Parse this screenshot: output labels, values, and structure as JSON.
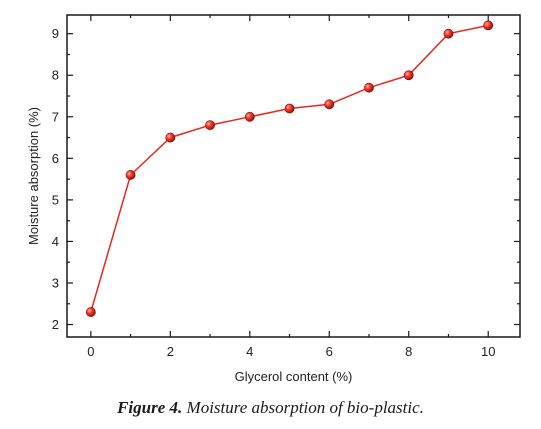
{
  "chart_data": {
    "type": "line",
    "x": [
      0,
      1,
      2,
      3,
      4,
      5,
      6,
      7,
      8,
      9,
      10
    ],
    "series": [
      {
        "values": [
          2.3,
          5.6,
          6.5,
          6.8,
          7.0,
          7.2,
          7.3,
          7.7,
          8.0,
          9.0,
          9.2
        ]
      }
    ],
    "xlabel": "Glycerol content (%)",
    "ylabel": "Moisture absorption (%)",
    "xlim": [
      -0.6,
      10.8
    ],
    "ylim": [
      1.7,
      9.45
    ],
    "xticks": [
      0,
      2,
      4,
      6,
      8,
      10
    ],
    "yticks": [
      2,
      3,
      4,
      5,
      6,
      7,
      8,
      9
    ],
    "grid": false,
    "line_color": "#e8281e",
    "marker_color": "#e8281e"
  },
  "caption": {
    "label": "Figure 4.",
    "text": "Moisture absorption of bio-plastic."
  }
}
